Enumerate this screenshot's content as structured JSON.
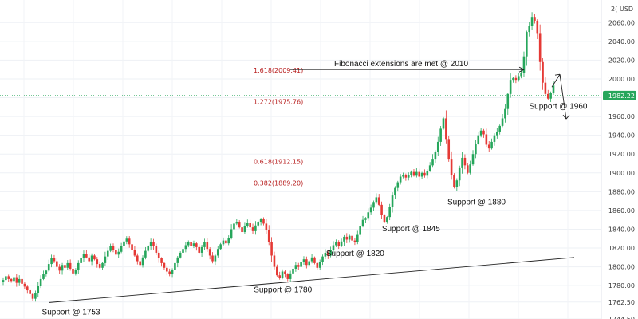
{
  "chart_data": {
    "type": "candlestick",
    "currency": "USD",
    "ylim": [
      1744.5,
      2084
    ],
    "grid": true,
    "last_price": 1982.22,
    "last_price_label": "1982.22",
    "y_ticks": [
      {
        "value": 1744.5,
        "label": "1744.50"
      },
      {
        "value": 1762.5,
        "label": "1762.50"
      },
      {
        "value": 1780,
        "label": "1780.00"
      },
      {
        "value": 1800,
        "label": "1800.00"
      },
      {
        "value": 1820,
        "label": "1820.00"
      },
      {
        "value": 1840,
        "label": "1840.00"
      },
      {
        "value": 1860,
        "label": "1860.00"
      },
      {
        "value": 1880,
        "label": "1880.00"
      },
      {
        "value": 1900,
        "label": "1900.00"
      },
      {
        "value": 1920,
        "label": "1920.00"
      },
      {
        "value": 1940,
        "label": "1940.00"
      },
      {
        "value": 1960,
        "label": "1960.00"
      },
      {
        "value": 1980,
        "label": "1980.00"
      },
      {
        "value": 2000,
        "label": "2000.00"
      },
      {
        "value": 2020,
        "label": "2020.00"
      },
      {
        "value": 2040,
        "label": "2040.00"
      },
      {
        "value": 2060,
        "label": "2060.00"
      }
    ],
    "top_tick_label": "2(",
    "fib_levels": [
      {
        "label": "1.618(2009.41)",
        "value": 2009.41
      },
      {
        "label": "1.272(1975.76)",
        "value": 1975.76
      },
      {
        "label": "0.618(1912.15)",
        "value": 1912.15
      },
      {
        "label": "0.382(1889.20)",
        "value": 1889.2
      }
    ],
    "annotations": [
      {
        "text": "Support @ 1753",
        "value": 1753
      },
      {
        "text": "Support @ 1780",
        "value": 1780
      },
      {
        "text": "Support @ 1820",
        "value": 1820
      },
      {
        "text": "Support @ 1845",
        "value": 1845
      },
      {
        "text": "Suppprt @ 1880",
        "value": 1880
      },
      {
        "text": "Support @ 1960",
        "value": 1960
      },
      {
        "text": "Fibonacci extensions are met @ 2010",
        "value": 2010
      }
    ],
    "trendline": {
      "start": 1762,
      "end": 1810
    },
    "price_path": [
      1786,
      1790,
      1787,
      1785,
      1789,
      1783,
      1787,
      1782,
      1779,
      1775,
      1771,
      1766,
      1772,
      1780,
      1787,
      1792,
      1796,
      1803,
      1809,
      1806,
      1800,
      1796,
      1802,
      1799,
      1804,
      1798,
      1793,
      1797,
      1804,
      1809,
      1814,
      1810,
      1806,
      1812,
      1808,
      1803,
      1799,
      1804,
      1811,
      1817,
      1822,
      1818,
      1813,
      1816,
      1822,
      1827,
      1830,
      1824,
      1818,
      1812,
      1806,
      1802,
      1810,
      1817,
      1822,
      1826,
      1822,
      1815,
      1809,
      1804,
      1799,
      1795,
      1792,
      1797,
      1804,
      1810,
      1815,
      1819,
      1823,
      1826,
      1822,
      1825,
      1821,
      1815,
      1821,
      1826,
      1819,
      1812,
      1806,
      1812,
      1819,
      1824,
      1828,
      1825,
      1831,
      1840,
      1846,
      1848,
      1842,
      1837,
      1843,
      1847,
      1842,
      1838,
      1844,
      1848,
      1851,
      1846,
      1839,
      1826,
      1812,
      1800,
      1791,
      1788,
      1795,
      1792,
      1787,
      1793,
      1798,
      1802,
      1800,
      1805,
      1808,
      1802,
      1806,
      1810,
      1804,
      1799,
      1805,
      1811,
      1815,
      1812,
      1818,
      1823,
      1826,
      1822,
      1827,
      1832,
      1829,
      1833,
      1828,
      1826,
      1834,
      1843,
      1850,
      1852,
      1858,
      1863,
      1869,
      1874,
      1866,
      1855,
      1848,
      1853,
      1864,
      1876,
      1884,
      1890,
      1896,
      1898,
      1895,
      1898,
      1901,
      1897,
      1901,
      1896,
      1900,
      1897,
      1902,
      1908,
      1915,
      1922,
      1933,
      1947,
      1958,
      1936,
      1915,
      1898,
      1885,
      1892,
      1905,
      1916,
      1908,
      1900,
      1909,
      1920,
      1931,
      1940,
      1945,
      1941,
      1930,
      1926,
      1933,
      1940,
      1944,
      1950,
      1958,
      1968,
      1984,
      1999,
      2001,
      1999,
      2003,
      2006,
      2024,
      2050,
      2056,
      2066,
      2062,
      2048,
      2018,
      1996,
      1984,
      1979,
      1985,
      1993
    ]
  }
}
